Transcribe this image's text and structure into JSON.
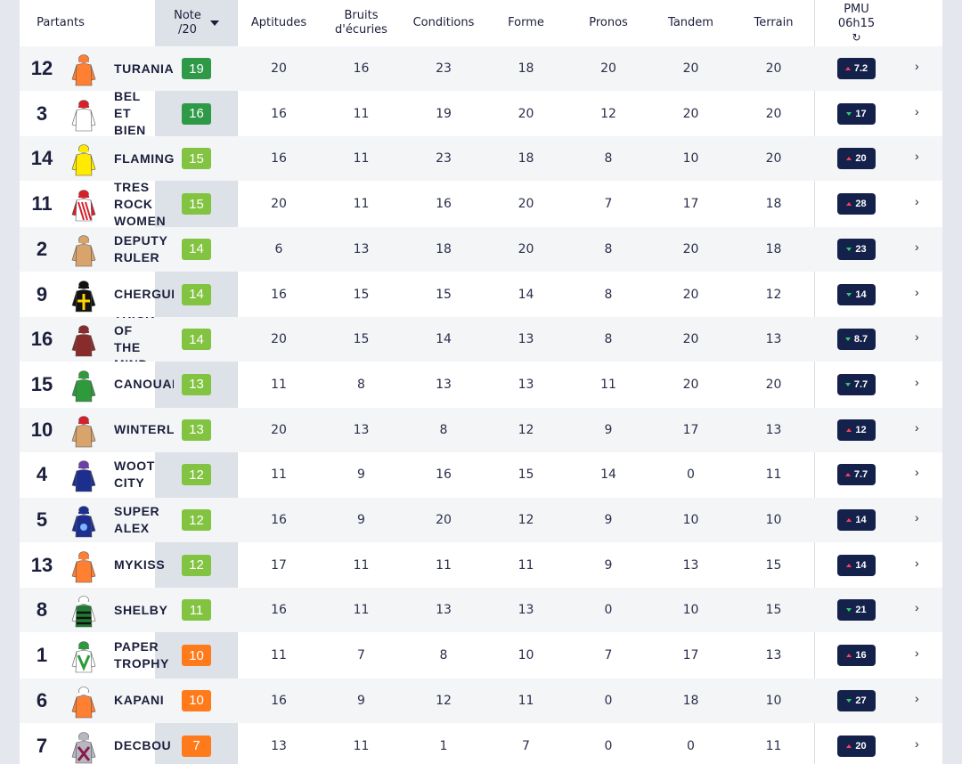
{
  "colors": {
    "note_dark_green": "#2e9a47",
    "note_green": "#82c341",
    "note_orange": "#ff7a1a",
    "odds_bg": "#14214b",
    "odds_up": "#ff3d5c",
    "odds_down": "#2ecc71"
  },
  "header": {
    "partants": "Partants",
    "note_line1": "Note",
    "note_line2": "/20",
    "aptitudes": "Aptitudes",
    "bruits_line1": "Bruits",
    "bruits_line2": "d'écuries",
    "conditions": "Conditions",
    "forme": "Forme",
    "pronos": "Pronos",
    "tandem": "Tandem",
    "terrain": "Terrain",
    "pmu_line1": "PMU",
    "pmu_line2": "06h15",
    "pmu_icon": "refresh-icon"
  },
  "runners": [
    {
      "num": "12",
      "name": "TURANIA",
      "note": "19",
      "note_level": "dark",
      "aptitudes": "20",
      "bruits": "16",
      "conditions": "23",
      "forme": "18",
      "pronos": "20",
      "tandem": "20",
      "terrain": "20",
      "odds": "7.2",
      "trend": "up",
      "silk": {
        "jacket": "#ff7f33",
        "sleeves": "#ff7f33",
        "cap": "#ff7f33",
        "accent": "#ffffff",
        "pattern": "plain"
      }
    },
    {
      "num": "3",
      "name": "BEL ET BIEN",
      "note": "16",
      "note_level": "dark",
      "aptitudes": "16",
      "bruits": "11",
      "conditions": "19",
      "forme": "20",
      "pronos": "12",
      "tandem": "20",
      "terrain": "20",
      "odds": "17",
      "trend": "down",
      "silk": {
        "jacket": "#ffffff",
        "sleeves": "#ffffff",
        "cap": "#d81f2a",
        "accent": "#222222",
        "pattern": "plain"
      }
    },
    {
      "num": "14",
      "name": "FLAMINGWAY",
      "note": "15",
      "note_level": "green",
      "aptitudes": "16",
      "bruits": "11",
      "conditions": "23",
      "forme": "18",
      "pronos": "8",
      "tandem": "10",
      "terrain": "20",
      "odds": "20",
      "trend": "up",
      "silk": {
        "jacket": "#ffea00",
        "sleeves": "#ffea00",
        "cap": "#ffea00",
        "accent": "#111111",
        "pattern": "plain"
      }
    },
    {
      "num": "11",
      "name": "TRES ROCK WOMEN",
      "note": "15",
      "note_level": "green",
      "aptitudes": "20",
      "bruits": "11",
      "conditions": "16",
      "forme": "20",
      "pronos": "7",
      "tandem": "17",
      "terrain": "18",
      "odds": "28",
      "trend": "up",
      "silk": {
        "jacket": "#ffffff",
        "sleeves": "#d81f2a",
        "cap": "#d81f2a",
        "accent": "#d81f2a",
        "pattern": "stripes"
      }
    },
    {
      "num": "2",
      "name": "DEPUTY RULER",
      "note": "14",
      "note_level": "green",
      "aptitudes": "6",
      "bruits": "13",
      "conditions": "18",
      "forme": "20",
      "pronos": "8",
      "tandem": "20",
      "terrain": "18",
      "odds": "23",
      "trend": "down",
      "silk": {
        "jacket": "#d9a36c",
        "sleeves": "#d9a36c",
        "cap": "#d9a36c",
        "accent": "#b33b2c",
        "pattern": "plain"
      }
    },
    {
      "num": "9",
      "name": "CHERGUI",
      "note": "14",
      "note_level": "green",
      "aptitudes": "16",
      "bruits": "15",
      "conditions": "15",
      "forme": "14",
      "pronos": "8",
      "tandem": "20",
      "terrain": "12",
      "odds": "14",
      "trend": "down",
      "silk": {
        "jacket": "#111111",
        "sleeves": "#111111",
        "cap": "#111111",
        "accent": "#ffd400",
        "pattern": "cross"
      }
    },
    {
      "num": "16",
      "name": "TRICK OF THE MIND",
      "note": "14",
      "note_level": "green",
      "aptitudes": "20",
      "bruits": "15",
      "conditions": "14",
      "forme": "13",
      "pronos": "8",
      "tandem": "20",
      "terrain": "13",
      "odds": "8.7",
      "trend": "down",
      "silk": {
        "jacket": "#8a2b2b",
        "sleeves": "#8a2b2b",
        "cap": "#8a2b2b",
        "accent": "#ffffff",
        "pattern": "plain"
      }
    },
    {
      "num": "15",
      "name": "CANOUANE",
      "note": "13",
      "note_level": "green",
      "aptitudes": "11",
      "bruits": "8",
      "conditions": "13",
      "forme": "13",
      "pronos": "11",
      "tandem": "20",
      "terrain": "20",
      "odds": "7.7",
      "trend": "down",
      "silk": {
        "jacket": "#2e9a3c",
        "sleeves": "#2e9a3c",
        "cap": "#2e9a3c",
        "accent": "#ffffff",
        "pattern": "plain"
      }
    },
    {
      "num": "10",
      "name": "WINTERLAND",
      "note": "13",
      "note_level": "green",
      "aptitudes": "20",
      "bruits": "13",
      "conditions": "8",
      "forme": "12",
      "pronos": "9",
      "tandem": "17",
      "terrain": "13",
      "odds": "12",
      "trend": "up",
      "silk": {
        "jacket": "#d9a36c",
        "sleeves": "#d9a36c",
        "cap": "#d81f2a",
        "accent": "#d81f2a",
        "pattern": "plain"
      }
    },
    {
      "num": "4",
      "name": "WOOT CITY",
      "note": "12",
      "note_level": "green",
      "aptitudes": "11",
      "bruits": "9",
      "conditions": "16",
      "forme": "15",
      "pronos": "14",
      "tandem": "0",
      "terrain": "11",
      "odds": "7.7",
      "trend": "up",
      "silk": {
        "jacket": "#1c2f8f",
        "sleeves": "#1c2f8f",
        "cap": "#6a3fa8",
        "accent": "#ffffff",
        "pattern": "plain"
      }
    },
    {
      "num": "5",
      "name": "SUPER ALEX",
      "note": "12",
      "note_level": "green",
      "aptitudes": "16",
      "bruits": "9",
      "conditions": "20",
      "forme": "12",
      "pronos": "9",
      "tandem": "10",
      "terrain": "10",
      "odds": "14",
      "trend": "up",
      "silk": {
        "jacket": "#1c2f8f",
        "sleeves": "#1c2f8f",
        "cap": "#1c2f8f",
        "accent": "#7fb2ff",
        "pattern": "circle"
      }
    },
    {
      "num": "13",
      "name": "MYKISS",
      "note": "12",
      "note_level": "green",
      "aptitudes": "17",
      "bruits": "11",
      "conditions": "11",
      "forme": "11",
      "pronos": "9",
      "tandem": "13",
      "terrain": "15",
      "odds": "14",
      "trend": "up",
      "silk": {
        "jacket": "#ff7f33",
        "sleeves": "#ff7f33",
        "cap": "#ff7f33",
        "accent": "#111111",
        "pattern": "plain"
      }
    },
    {
      "num": "8",
      "name": "SHELBY",
      "note": "11",
      "note_level": "green",
      "aptitudes": "16",
      "bruits": "11",
      "conditions": "13",
      "forme": "13",
      "pronos": "0",
      "tandem": "10",
      "terrain": "15",
      "odds": "21",
      "trend": "down",
      "silk": {
        "jacket": "#1f7a33",
        "sleeves": "#ffffff",
        "cap": "#ffffff",
        "accent": "#111111",
        "pattern": "hoops"
      }
    },
    {
      "num": "1",
      "name": "PAPER TROPHY",
      "note": "10",
      "note_level": "orange",
      "aptitudes": "11",
      "bruits": "7",
      "conditions": "8",
      "forme": "10",
      "pronos": "7",
      "tandem": "17",
      "terrain": "13",
      "odds": "16",
      "trend": "up",
      "silk": {
        "jacket": "#ffffff",
        "sleeves": "#ffffff",
        "cap": "#2e9a3c",
        "accent": "#2e9a3c",
        "pattern": "chevron"
      }
    },
    {
      "num": "6",
      "name": "KAPANI",
      "note": "10",
      "note_level": "orange",
      "aptitudes": "16",
      "bruits": "9",
      "conditions": "12",
      "forme": "11",
      "pronos": "0",
      "tandem": "18",
      "terrain": "10",
      "odds": "27",
      "trend": "down",
      "silk": {
        "jacket": "#ff7f33",
        "sleeves": "#ff7f33",
        "cap": "#ffffff",
        "accent": "#ffffff",
        "pattern": "plain"
      }
    },
    {
      "num": "7",
      "name": "DECBOU",
      "note": "7",
      "note_level": "orange",
      "aptitudes": "13",
      "bruits": "11",
      "conditions": "1",
      "forme": "7",
      "pronos": "0",
      "tandem": "0",
      "terrain": "11",
      "odds": "20",
      "trend": "up",
      "silk": {
        "jacket": "#b7b7c2",
        "sleeves": "#b7b7c2",
        "cap": "#b7b7c2",
        "accent": "#8a1a4a",
        "pattern": "cross2"
      }
    }
  ]
}
